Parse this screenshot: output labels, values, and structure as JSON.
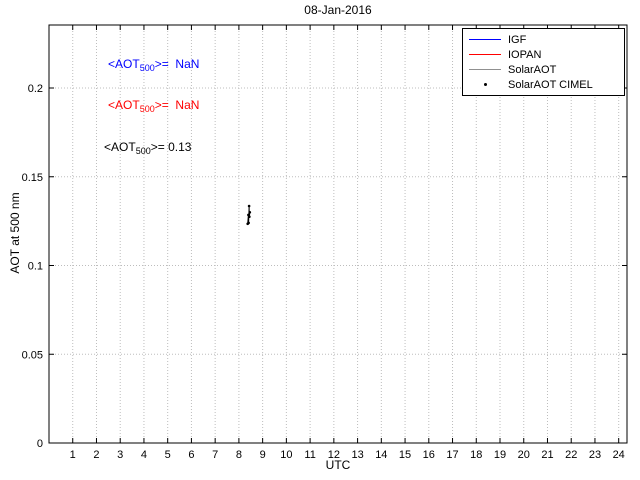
{
  "chart_data": {
    "type": "line",
    "title": "08-Jan-2016",
    "xlabel": "UTC",
    "ylabel": "AOT at 500 nm",
    "xlim": [
      0,
      24.35
    ],
    "ylim": [
      0,
      0.2355
    ],
    "xticks": [
      1,
      2,
      3,
      4,
      5,
      6,
      7,
      8,
      9,
      10,
      11,
      12,
      13,
      14,
      15,
      16,
      17,
      18,
      19,
      20,
      21,
      22,
      23,
      24
    ],
    "yticks": [
      {
        "v": 0,
        "label": "0"
      },
      {
        "v": 0.05,
        "label": "0.05"
      },
      {
        "v": 0.1,
        "label": "0.1"
      },
      {
        "v": 0.15,
        "label": "0.15"
      },
      {
        "v": 0.2,
        "label": "0.2"
      }
    ],
    "grid": true,
    "legend_position": "top-right",
    "legend": [
      {
        "label": "IGF",
        "color": "#0000ff",
        "type": "line"
      },
      {
        "label": "IOPAN",
        "color": "#ff0000",
        "type": "line"
      },
      {
        "label": "SolarAOT",
        "color": "#909090",
        "type": "line"
      },
      {
        "label": "SolarAOT CIMEL",
        "color": "#000000",
        "type": "marker",
        "marker": "dot"
      }
    ],
    "annotations": [
      {
        "pre": "<AOT",
        "sub": "500",
        "post": ">=  NaN",
        "color": "#0000ff"
      },
      {
        "pre": "<AOT",
        "sub": "500",
        "post": ">=  NaN",
        "color": "#ff0000"
      },
      {
        "pre": "<AOT",
        "sub": "500",
        "post": ">= 0.13",
        "color": "#000000"
      }
    ],
    "series": [
      {
        "name": "IGF",
        "color": "#0000ff",
        "points": []
      },
      {
        "name": "IOPAN",
        "color": "#ff0000",
        "points": []
      },
      {
        "name": "SolarAOT",
        "color": "#909090",
        "points": []
      },
      {
        "name": "SolarAOT CIMEL",
        "color": "#000000",
        "marker": "dot",
        "points": [
          [
            8.37,
            0.1235
          ],
          [
            8.4,
            0.1285
          ],
          [
            8.41,
            0.124
          ],
          [
            8.43,
            0.1335
          ],
          [
            8.44,
            0.1275
          ],
          [
            8.46,
            0.13
          ]
        ]
      }
    ]
  }
}
